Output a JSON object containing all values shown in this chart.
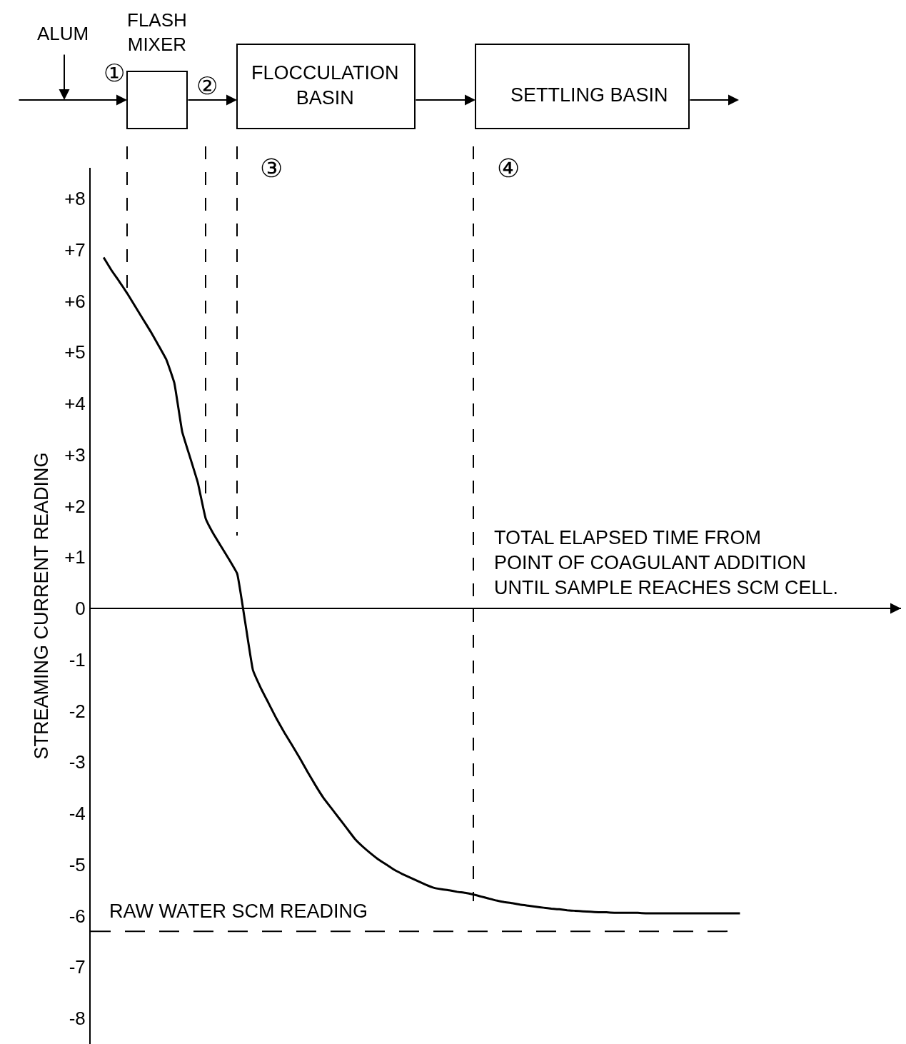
{
  "chart_data": {
    "type": "line",
    "ylabel": "STREAMING CURRENT READING",
    "xlabel": "TOTAL ELAPSED TIME FROM\nPOINT OF COAGULANT ADDITION\nUNTIL SAMPLE REACHES SCM CELL.",
    "categories": [
      null,
      null,
      null,
      null,
      null,
      null,
      null,
      null,
      null,
      null,
      null,
      null,
      null,
      null,
      null,
      null,
      null,
      null,
      null,
      null,
      null,
      null,
      null,
      null,
      null,
      null,
      null,
      null,
      null,
      null,
      null,
      null,
      null,
      null,
      null,
      null,
      null,
      null,
      null,
      null,
      null,
      null,
      null,
      null,
      null,
      null,
      null,
      null,
      null,
      null,
      null,
      null,
      null,
      null,
      null,
      null,
      null,
      null,
      null,
      null,
      null,
      null,
      null,
      null,
      null,
      null,
      null,
      null,
      null,
      null,
      null,
      null,
      null,
      null,
      null,
      null,
      null,
      null,
      null,
      null,
      null,
      null,
      null,
      null,
      null,
      null,
      null,
      null,
      null,
      null,
      null,
      null,
      null,
      null,
      null,
      null,
      null,
      null,
      null,
      null,
      null,
      null
    ],
    "series": [
      {
        "color": "#000000",
        "values": [
          6.85,
          6.6,
          6.38,
          6.15,
          5.9,
          5.65,
          5.4,
          5.13,
          4.85,
          4.4,
          3.45,
          2.95,
          2.45,
          1.75,
          1.45,
          1.2,
          0.95,
          0.68,
          -0.25,
          -1.2,
          -1.55,
          -1.85,
          -2.15,
          -2.42,
          -2.67,
          -2.93,
          -3.2,
          -3.46,
          -3.7,
          -3.9,
          -4.1,
          -4.3,
          -4.5,
          -4.65,
          -4.78,
          -4.9,
          -5.0,
          -5.1,
          -5.18,
          -5.25,
          -5.32,
          -5.39,
          -5.45,
          -5.48,
          -5.5,
          -5.53,
          -5.55,
          -5.58,
          -5.62,
          -5.66,
          -5.7,
          -5.73,
          -5.75,
          -5.78,
          -5.8,
          -5.82,
          -5.84,
          -5.86,
          -5.87,
          -5.89,
          -5.9,
          -5.91,
          -5.92,
          -5.93,
          -5.93,
          -5.94,
          -5.94,
          -5.94,
          -5.94,
          -5.95,
          -5.95,
          -5.95,
          -5.95,
          -5.95,
          -5.95,
          -5.95,
          -5.95,
          -5.95,
          -5.95,
          -5.95,
          -5.95,
          -5.95,
          null,
          null,
          null,
          null,
          null,
          null,
          null,
          null,
          null,
          null,
          null,
          null,
          null,
          null,
          null,
          null,
          null,
          null,
          null,
          null
        ]
      }
    ],
    "ylim": [
      -8.5,
      8.6
    ],
    "yticks": [
      {
        "value": 8,
        "label": "+8"
      },
      {
        "value": 7,
        "label": "+7"
      },
      {
        "value": 6,
        "label": "+6"
      },
      {
        "value": 5,
        "label": "+5"
      },
      {
        "value": 4,
        "label": "+4"
      },
      {
        "value": 3,
        "label": "+3"
      },
      {
        "value": 2,
        "label": "+2"
      },
      {
        "value": 1,
        "label": "+1"
      },
      0,
      -1,
      -2,
      -3,
      -4,
      -5,
      -6,
      -7,
      -8
    ],
    "ref_lines": [
      {
        "axis": "y",
        "value": -6.3,
        "label": "RAW WATER SCM READING",
        "line_style": "dashed"
      }
    ],
    "annotations": [
      "ALUM",
      "FLASH\nMIXER",
      "①",
      "②",
      "FLOCCULATION\nBASIN",
      "SETTLING BASIN",
      "③",
      "④"
    ],
    "marker": "none",
    "line_style": "solid"
  }
}
